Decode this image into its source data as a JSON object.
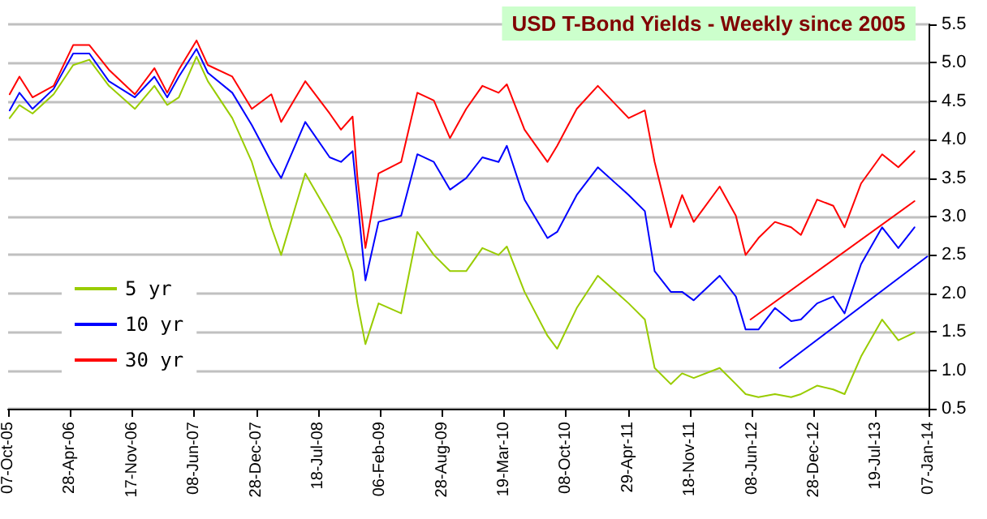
{
  "chart_data": {
    "type": "line",
    "title": "USD T-Bond Yields - Weekly since 2005",
    "x": [
      "2005-10-12",
      "2005-11-13",
      "2005-12-26",
      "2006-03-05",
      "2006-05-08",
      "2006-06-30",
      "2006-09-02",
      "2006-11-26",
      "2007-01-29",
      "2007-03-12",
      "2007-04-19",
      "2007-06-16",
      "2007-07-23",
      "2007-10-11",
      "2007-12-14",
      "2008-02-16",
      "2008-03-19",
      "2008-06-06",
      "2008-08-25",
      "2008-10-01",
      "2008-11-08",
      "2008-11-24",
      "2008-12-20",
      "2009-02-01",
      "2009-04-16",
      "2009-06-08",
      "2009-08-01",
      "2009-09-23",
      "2009-11-15",
      "2010-01-07",
      "2010-03-01",
      "2010-03-28",
      "2010-05-25",
      "2010-08-08",
      "2010-09-09",
      "2010-11-12",
      "2011-01-20",
      "2011-05-01",
      "2011-06-23",
      "2011-07-25",
      "2011-09-16",
      "2011-10-23",
      "2011-11-30",
      "2012-02-23",
      "2012-04-16",
      "2012-05-18",
      "2012-06-29",
      "2012-08-22",
      "2012-10-14",
      "2012-11-15",
      "2013-01-07",
      "2013-03-01",
      "2013-04-07",
      "2013-05-31",
      "2013-08-08",
      "2013-09-30",
      "2013-11-22"
    ],
    "series": [
      {
        "name": "5 yr",
        "color": "#99cc00",
        "values": [
          4.28,
          4.45,
          4.34,
          4.59,
          4.97,
          5.04,
          4.7,
          4.4,
          4.7,
          4.45,
          4.55,
          5.08,
          4.76,
          4.28,
          3.71,
          2.86,
          2.5,
          3.56,
          3.01,
          2.72,
          2.29,
          1.87,
          1.34,
          1.87,
          1.74,
          2.8,
          2.5,
          2.29,
          2.29,
          2.59,
          2.5,
          2.61,
          2.02,
          1.45,
          1.28,
          1.81,
          2.23,
          1.87,
          1.66,
          1.03,
          0.82,
          0.96,
          0.9,
          1.03,
          0.82,
          0.69,
          0.65,
          0.69,
          0.65,
          0.69,
          0.8,
          0.75,
          0.69,
          1.18,
          1.66,
          1.39,
          1.49
        ]
      },
      {
        "name": "10 yr",
        "color": "#0000ff",
        "values": [
          4.38,
          4.61,
          4.4,
          4.66,
          5.12,
          5.12,
          4.76,
          4.55,
          4.82,
          4.55,
          4.82,
          5.18,
          4.87,
          4.61,
          4.19,
          3.71,
          3.5,
          4.23,
          3.77,
          3.71,
          3.85,
          3.22,
          2.17,
          2.93,
          3.01,
          3.81,
          3.71,
          3.35,
          3.5,
          3.77,
          3.71,
          3.92,
          3.22,
          2.72,
          2.8,
          3.28,
          3.64,
          3.28,
          3.07,
          2.29,
          2.02,
          2.02,
          1.91,
          2.23,
          1.96,
          1.53,
          1.53,
          1.81,
          1.64,
          1.66,
          1.87,
          1.96,
          1.74,
          2.38,
          2.86,
          2.59,
          2.86
        ]
      },
      {
        "name": "30 yr",
        "color": "#ff0000",
        "values": [
          4.59,
          4.82,
          4.55,
          4.7,
          5.23,
          5.23,
          4.91,
          4.59,
          4.93,
          4.61,
          4.91,
          5.29,
          4.97,
          4.82,
          4.4,
          4.59,
          4.23,
          4.76,
          4.34,
          4.13,
          4.3,
          3.5,
          2.59,
          3.56,
          3.71,
          4.61,
          4.51,
          4.02,
          4.4,
          4.7,
          4.61,
          4.72,
          4.13,
          3.71,
          3.92,
          4.4,
          4.7,
          4.28,
          4.38,
          3.71,
          2.86,
          3.28,
          2.93,
          3.39,
          3.01,
          2.5,
          2.72,
          2.93,
          2.86,
          2.76,
          3.22,
          3.14,
          2.86,
          3.43,
          3.81,
          3.64,
          3.85
        ]
      },
      {
        "type": "line",
        "color": "#ff0000",
        "x": [
          "2012-06-03",
          "2013-11-22"
        ],
        "values": [
          1.66,
          3.2
        ]
      },
      {
        "type": "line",
        "color": "#0000ff",
        "x": [
          "2012-09-07",
          "2014-01-03"
        ],
        "values": [
          1.03,
          2.48
        ]
      }
    ],
    "xlim": [
      "2005-10-07",
      "2014-01-07"
    ],
    "xticks": [
      {
        "value": "2005-10-07",
        "label": "07-Oct-05"
      },
      {
        "value": "2006-04-28",
        "label": "28-Apr-06"
      },
      {
        "value": "2006-11-17",
        "label": "17-Nov-06"
      },
      {
        "value": "2007-06-08",
        "label": "08-Jun-07"
      },
      {
        "value": "2007-12-28",
        "label": "28-Dec-07"
      },
      {
        "value": "2008-07-18",
        "label": "18-Jul-08"
      },
      {
        "value": "2009-02-06",
        "label": "06-Feb-09"
      },
      {
        "value": "2009-08-28",
        "label": "28-Aug-09"
      },
      {
        "value": "2010-03-19",
        "label": "19-Mar-10"
      },
      {
        "value": "2010-10-08",
        "label": "08-Oct-10"
      },
      {
        "value": "2011-04-29",
        "label": "29-Apr-11"
      },
      {
        "value": "2011-11-18",
        "label": "18-Nov-11"
      },
      {
        "value": "2012-06-08",
        "label": "08-Jun-12"
      },
      {
        "value": "2012-12-28",
        "label": "28-Dec-12"
      },
      {
        "value": "2013-07-19",
        "label": "19-Jul-13"
      },
      {
        "value": "2014-01-07",
        "label": "07-Jan-14"
      }
    ],
    "ylim": [
      0.5,
      5.5
    ],
    "yticks": [
      0.5,
      {
        "value": 1,
        "label": "1.0"
      },
      1.5,
      {
        "value": 2,
        "label": "2.0"
      },
      2.5,
      {
        "value": 3,
        "label": "3.0"
      },
      3.5,
      {
        "value": 4,
        "label": "4.0"
      },
      4.5,
      {
        "value": 5,
        "label": "5.0"
      },
      5.5
    ],
    "grid": "y",
    "legend": "bottom left",
    "marker": "none",
    "line_style": "solid"
  }
}
